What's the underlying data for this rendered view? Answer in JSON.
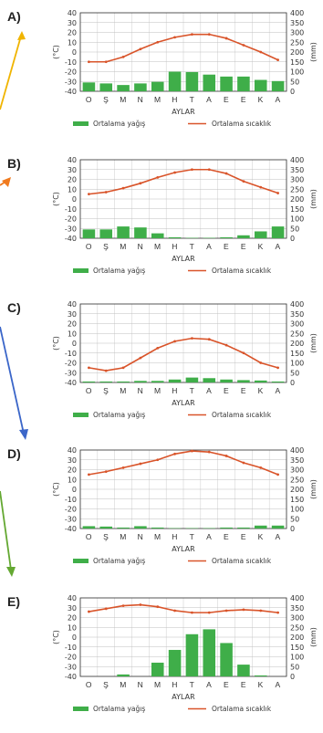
{
  "chart_data": [
    {
      "type": "bar+line",
      "panel_label": "A)",
      "categories": [
        "O",
        "Ş",
        "M",
        "N",
        "M",
        "H",
        "T",
        "A",
        "E",
        "E",
        "K",
        "A"
      ],
      "xlabel": "AYLAR",
      "ylabel_left": "(°C)",
      "ylabel_right": "(mm)",
      "ylim_left": [
        -40,
        40
      ],
      "ylim_right": [
        0,
        400
      ],
      "yticks_left": [
        "40",
        "30",
        "20",
        "10",
        "0",
        "-10",
        "-20",
        "-30",
        "-40"
      ],
      "yticks_right": [
        "400",
        "350",
        "300",
        "250",
        "200",
        "150",
        "100",
        "50",
        "0"
      ],
      "series": [
        {
          "name": "Ortalama yağış",
          "kind": "bar",
          "values": [
            45,
            40,
            32,
            40,
            48,
            100,
            98,
            85,
            75,
            75,
            58,
            52
          ]
        },
        {
          "name": "Ortalama sıcaklık",
          "kind": "line",
          "values": [
            -10,
            -10,
            -5,
            3,
            10,
            15,
            18,
            18,
            14,
            7,
            0,
            -8
          ]
        }
      ]
    },
    {
      "type": "bar+line",
      "panel_label": "B)",
      "categories": [
        "O",
        "Ş",
        "M",
        "N",
        "M",
        "H",
        "T",
        "A",
        "E",
        "E",
        "K",
        "A"
      ],
      "xlabel": "AYLAR",
      "ylabel_left": "(°C)",
      "ylabel_right": "(mm)",
      "ylim_left": [
        -40,
        40
      ],
      "ylim_right": [
        0,
        400
      ],
      "yticks_left": [
        "40",
        "30",
        "20",
        "10",
        "0",
        "-10",
        "-20",
        "-30",
        "-40"
      ],
      "yticks_right": [
        "400",
        "350",
        "300",
        "250",
        "200",
        "150",
        "100",
        "50",
        "0"
      ],
      "series": [
        {
          "name": "Ortalama yağış",
          "kind": "bar",
          "values": [
            45,
            45,
            60,
            55,
            25,
            5,
            2,
            2,
            5,
            15,
            35,
            60
          ]
        },
        {
          "name": "Ortalama sıcaklık",
          "kind": "line",
          "values": [
            5,
            7,
            11,
            16,
            22,
            27,
            30,
            30,
            26,
            18,
            12,
            6
          ]
        }
      ]
    },
    {
      "type": "bar+line",
      "panel_label": "C)",
      "categories": [
        "O",
        "Ş",
        "M",
        "N",
        "M",
        "H",
        "T",
        "A",
        "E",
        "E",
        "K",
        "A"
      ],
      "xlabel": "AYLAR",
      "ylabel_left": "(°C)",
      "ylabel_right": "(mm)",
      "ylim_left": [
        -40,
        40
      ],
      "ylim_right": [
        0,
        400
      ],
      "yticks_left": [
        "40",
        "30",
        "20",
        "10",
        "0",
        "-10",
        "-20",
        "-30",
        "-40"
      ],
      "yticks_right": [
        "400",
        "350",
        "300",
        "250",
        "200",
        "150",
        "100",
        "50",
        "0"
      ],
      "series": [
        {
          "name": "Ortalama yağış",
          "kind": "bar",
          "values": [
            5,
            5,
            5,
            8,
            8,
            15,
            25,
            22,
            15,
            12,
            10,
            5
          ]
        },
        {
          "name": "Ortalama sıcaklık",
          "kind": "line",
          "values": [
            -25,
            -28,
            -25,
            -15,
            -5,
            2,
            5,
            4,
            -2,
            -10,
            -20,
            -25
          ]
        }
      ]
    },
    {
      "type": "bar+line",
      "panel_label": "D)",
      "categories": [
        "O",
        "Ş",
        "M",
        "N",
        "M",
        "H",
        "T",
        "A",
        "E",
        "E",
        "K",
        "A"
      ],
      "xlabel": "AYLAR",
      "ylabel_left": "(°C)",
      "ylabel_right": "(mm)",
      "ylim_left": [
        -40,
        40
      ],
      "ylim_right": [
        0,
        400
      ],
      "yticks_left": [
        "40",
        "30",
        "20",
        "10",
        "0",
        "-10",
        "-20",
        "-30",
        "-40"
      ],
      "yticks_right": [
        "400",
        "350",
        "300",
        "250",
        "200",
        "150",
        "100",
        "50",
        "0"
      ],
      "series": [
        {
          "name": "Ortalama yağış",
          "kind": "bar",
          "values": [
            12,
            10,
            5,
            12,
            5,
            2,
            2,
            2,
            5,
            5,
            15,
            15
          ]
        },
        {
          "name": "Ortalama sıcaklık",
          "kind": "line",
          "values": [
            15,
            18,
            22,
            26,
            30,
            36,
            39,
            38,
            34,
            27,
            22,
            15
          ]
        }
      ]
    },
    {
      "type": "bar+line",
      "panel_label": "E)",
      "categories": [
        "O",
        "Ş",
        "M",
        "N",
        "M",
        "H",
        "T",
        "A",
        "E",
        "E",
        "K",
        "A"
      ],
      "xlabel": "AYLAR",
      "ylabel_left": "(°C)",
      "ylabel_right": "(mm)",
      "ylim_left": [
        -40,
        40
      ],
      "ylim_right": [
        0,
        400
      ],
      "yticks_left": [
        "40",
        "30",
        "20",
        "10",
        "0",
        "-10",
        "-20",
        "-30",
        "-40"
      ],
      "yticks_right": [
        "400",
        "350",
        "300",
        "250",
        "200",
        "150",
        "100",
        "50",
        "0"
      ],
      "series": [
        {
          "name": "Ortalama yağış",
          "kind": "bar",
          "values": [
            0,
            0,
            10,
            0,
            70,
            135,
            215,
            240,
            170,
            60,
            5,
            0
          ]
        },
        {
          "name": "Ortalama sıcaklık",
          "kind": "line",
          "values": [
            26,
            29,
            32,
            33,
            31,
            27,
            25,
            25,
            27,
            28,
            27,
            25
          ]
        }
      ]
    }
  ],
  "colors": {
    "bar": "#3fae49",
    "line": "#d9542a",
    "grid": "#bfbfbf",
    "axis": "#333333",
    "arrow_a": "#f0b400",
    "arrow_b": "#f07a1e",
    "arrow_c": "#3b66c9",
    "arrow_d": "#64a832"
  }
}
